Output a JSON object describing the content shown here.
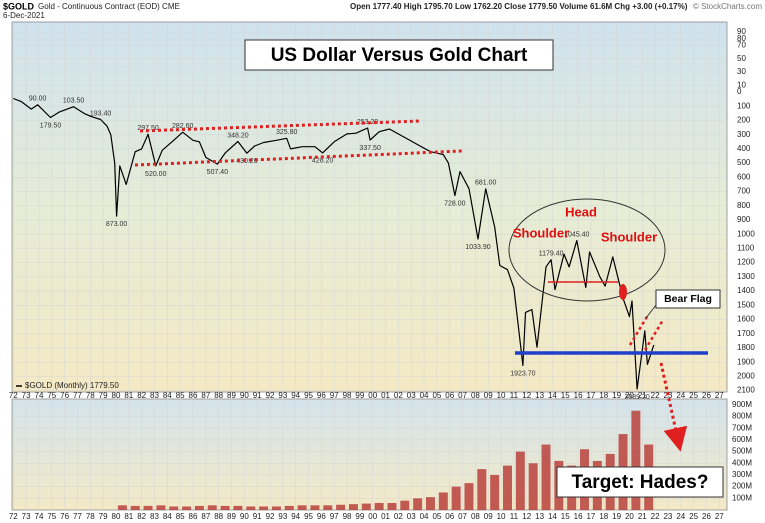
{
  "header": {
    "symbol": "$GOLD",
    "description": "Gold - Continuous Contract (EOD) CME",
    "date": "6-Dec-2021",
    "quote": "Open 1777.40 High 1795.70 Low 1762.20 Close 1779.50 Volume 61.6M Chg +3.00 (+0.17%)",
    "credit": "© StockCharts.com"
  },
  "chart_data": [
    {
      "type": "line",
      "title": "US Dollar Versus Gold Chart",
      "inverted": true,
      "grid": true,
      "x": [
        1972.0,
        1972.6,
        1973.4,
        1973.9,
        1974.9,
        1975.6,
        1976.7,
        1977.5,
        1978.0,
        1978.8,
        1979.3,
        1979.6,
        1979.9,
        1980.05,
        1980.3,
        1980.8,
        1981.5,
        1982.0,
        1982.5,
        1983.1,
        1983.6,
        1984.5,
        1985.2,
        1986.0,
        1986.5,
        1987.0,
        1987.9,
        1988.5,
        1989.5,
        1990.2,
        1990.8,
        1991.5,
        1992.5,
        1993.3,
        1993.6,
        1994.5,
        1995.5,
        1996.1,
        1997.0,
        1998.0,
        1998.7,
        1999.6,
        1999.8,
        2000.5,
        2001.3,
        2002.5,
        2003.5,
        2004.5,
        2005.5,
        2005.9,
        2006.4,
        2006.8,
        2007.5,
        2008.2,
        2008.8,
        2009.5,
        2009.9,
        2010.5,
        2011.0,
        2011.7,
        2011.9,
        2012.4,
        2012.8,
        2013.5,
        2013.9,
        2014.2,
        2014.9,
        2015.3,
        2015.9,
        2016.6,
        2016.9,
        2017.7,
        2018.1,
        2018.7,
        2019.5,
        2020.0,
        2020.2,
        2020.6,
        2021.2,
        2021.4,
        2021.9
      ],
      "series": [
        {
          "name": "$GOLD (Monthly) 1779.50",
          "color": "#000000",
          "values": [
            46,
            66,
            120,
            90,
            179.5,
            140,
            103.5,
            150,
            170,
            193.4,
            240,
            300,
            500,
            873,
            520,
            650,
            420,
            400,
            297.5,
            520,
            410,
            340,
            282.6,
            340,
            350,
            460,
            507.4,
            430,
            348.2,
            430.2,
            380,
            355,
            340,
            325.8,
            400,
            385,
            385,
            428.2,
            350,
            295,
            290,
            253.2,
            337.5,
            280,
            260,
            320,
            370,
            420,
            440,
            500,
            728,
            560,
            680,
            1033.9,
            681,
            950,
            1220,
            1250,
            1380,
            1923.7,
            1550,
            1530,
            1795,
            1230,
            1179.4,
            1390,
            1140,
            1230,
            1045.4,
            1375,
            1125,
            1300,
            1365,
            1160,
            1450,
            1580,
            1470,
            2089.2,
            1680,
            1916,
            1779.5
          ]
        }
      ],
      "price_labels": [
        {
          "x": 1973.9,
          "value": 90,
          "label": "90.00"
        },
        {
          "x": 1974.9,
          "value": 179.5,
          "label": "179.50"
        },
        {
          "x": 1976.7,
          "value": 103.5,
          "label": "103.50"
        },
        {
          "x": 1978.8,
          "value": 193.4,
          "label": "193.40"
        },
        {
          "x": 1980.05,
          "value": 873,
          "label": "873.00"
        },
        {
          "x": 1982.5,
          "value": 297.5,
          "label": "297.50"
        },
        {
          "x": 1983.1,
          "value": 520,
          "label": "520.00"
        },
        {
          "x": 1985.2,
          "value": 282.6,
          "label": "282.60"
        },
        {
          "x": 1987.9,
          "value": 507.4,
          "label": "507.40"
        },
        {
          "x": 1989.5,
          "value": 348.2,
          "label": "348.20"
        },
        {
          "x": 1990.2,
          "value": 430.2,
          "label": "430.20"
        },
        {
          "x": 1993.3,
          "value": 325.8,
          "label": "325.80"
        },
        {
          "x": 1996.1,
          "value": 428.2,
          "label": "428.20"
        },
        {
          "x": 1999.6,
          "value": 253.2,
          "label": "253.20"
        },
        {
          "x": 1999.8,
          "value": 337.5,
          "label": "337.50"
        },
        {
          "x": 2006.4,
          "value": 728,
          "label": "728.00"
        },
        {
          "x": 2008.2,
          "value": 1033.9,
          "label": "1033.90"
        },
        {
          "x": 2008.8,
          "value": 681,
          "label": "681.00"
        },
        {
          "x": 2011.7,
          "value": 1923.7,
          "label": "1923.70"
        },
        {
          "x": 2013.9,
          "value": 1179.4,
          "label": "1179.40"
        },
        {
          "x": 2015.9,
          "value": 1045.4,
          "label": "1045.40"
        },
        {
          "x": 2020.6,
          "value": 2089.2,
          "label": "2089.20"
        }
      ],
      "annotations": {
        "head": "Head",
        "left_shoulder": "Shoulder",
        "right_shoulder": "Shoulder",
        "flag": "Bear Flag",
        "target": "Target: Hades?"
      },
      "xlim": [
        1971.9,
        2027.6
      ],
      "xticks": [
        {
          "value": 1972,
          "label": "72"
        },
        {
          "value": 1973,
          "label": "73"
        },
        {
          "value": 1974,
          "label": "74"
        },
        {
          "value": 1975,
          "label": "75"
        },
        {
          "value": 1976,
          "label": "76"
        },
        {
          "value": 1977,
          "label": "77"
        },
        {
          "value": 1978,
          "label": "78"
        },
        {
          "value": 1979,
          "label": "79"
        },
        {
          "value": 1980,
          "label": "80"
        },
        {
          "value": 1981,
          "label": "81"
        },
        {
          "value": 1982,
          "label": "82"
        },
        {
          "value": 1983,
          "label": "83"
        },
        {
          "value": 1984,
          "label": "84"
        },
        {
          "value": 1985,
          "label": "85"
        },
        {
          "value": 1986,
          "label": "86"
        },
        {
          "value": 1987,
          "label": "87"
        },
        {
          "value": 1988,
          "label": "88"
        },
        {
          "value": 1989,
          "label": "89"
        },
        {
          "value": 1990,
          "label": "90"
        },
        {
          "value": 1991,
          "label": "91"
        },
        {
          "value": 1992,
          "label": "92"
        },
        {
          "value": 1993,
          "label": "93"
        },
        {
          "value": 1994,
          "label": "94"
        },
        {
          "value": 1995,
          "label": "95"
        },
        {
          "value": 1996,
          "label": "96"
        },
        {
          "value": 1997,
          "label": "97"
        },
        {
          "value": 1998,
          "label": "98"
        },
        {
          "value": 1999,
          "label": "99"
        },
        {
          "value": 2000,
          "label": "00"
        },
        {
          "value": 2001,
          "label": "01"
        },
        {
          "value": 2002,
          "label": "02"
        },
        {
          "value": 2003,
          "label": "03"
        },
        {
          "value": 2004,
          "label": "04"
        },
        {
          "value": 2005,
          "label": "05"
        },
        {
          "value": 2006,
          "label": "06"
        },
        {
          "value": 2007,
          "label": "07"
        },
        {
          "value": 2008,
          "label": "08"
        },
        {
          "value": 2009,
          "label": "09"
        },
        {
          "value": 2010,
          "label": "10"
        },
        {
          "value": 2011,
          "label": "11"
        },
        {
          "value": 2012,
          "label": "12"
        },
        {
          "value": 2013,
          "label": "13"
        },
        {
          "value": 2014,
          "label": "14"
        },
        {
          "value": 2015,
          "label": "15"
        },
        {
          "value": 2016,
          "label": "16"
        },
        {
          "value": 2017,
          "label": "17"
        },
        {
          "value": 2018,
          "label": "18"
        },
        {
          "value": 2019,
          "label": "19"
        },
        {
          "value": 2020,
          "label": "20"
        },
        {
          "value": 2021,
          "label": "21"
        },
        {
          "value": 2022,
          "label": "22"
        },
        {
          "value": 2023,
          "label": "23"
        },
        {
          "value": 2024,
          "label": "24"
        },
        {
          "value": 2025,
          "label": "25"
        },
        {
          "value": 2026,
          "label": "26"
        },
        {
          "value": 2027,
          "label": "27"
        }
      ],
      "ylim": [
        -105,
        2110
      ],
      "yticks": [
        {
          "value": -90,
          "label": "90"
        },
        {
          "value": -80,
          "label": "80"
        },
        {
          "value": -70,
          "label": "70"
        },
        {
          "value": -50,
          "label": "50"
        },
        {
          "value": -30,
          "label": "30"
        },
        {
          "value": -10,
          "label": "10"
        },
        0,
        100,
        200,
        300,
        400,
        500,
        600,
        700,
        800,
        900,
        1000,
        1100,
        1200,
        1300,
        1400,
        1500,
        1600,
        1700,
        1800,
        1900,
        2000,
        2100
      ]
    },
    {
      "type": "bar",
      "color": "#b8413c",
      "grid": true,
      "x": [
        1980,
        1981,
        1982,
        1983,
        1984,
        1985,
        1986,
        1987,
        1988,
        1989,
        1990,
        1991,
        1992,
        1993,
        1994,
        1995,
        1996,
        1997,
        1998,
        1999,
        2000,
        2001,
        2002,
        2003,
        2004,
        2005,
        2006,
        2007,
        2008,
        2009,
        2010,
        2011,
        2012,
        2013,
        2014,
        2015,
        2016,
        2017,
        2018,
        2019,
        2020,
        2021
      ],
      "values": [
        40,
        35,
        35,
        40,
        30,
        30,
        35,
        40,
        35,
        35,
        30,
        30,
        30,
        35,
        40,
        40,
        40,
        45,
        50,
        55,
        60,
        60,
        80,
        100,
        110,
        150,
        200,
        230,
        350,
        300,
        380,
        500,
        400,
        560,
        420,
        380,
        520,
        420,
        480,
        650,
        850,
        560
      ],
      "xlim": [
        1971.9,
        2027.6
      ],
      "ylim": [
        0,
        950
      ],
      "yticks": [
        {
          "value": 100,
          "label": "100M"
        },
        {
          "value": 200,
          "label": "200M"
        },
        {
          "value": 300,
          "label": "300M"
        },
        {
          "value": 400,
          "label": "400M"
        },
        {
          "value": 500,
          "label": "500M"
        },
        {
          "value": 600,
          "label": "600M"
        },
        {
          "value": 700,
          "label": "700M"
        },
        {
          "value": 800,
          "label": "800M"
        },
        {
          "value": 900,
          "label": "900M"
        }
      ]
    }
  ]
}
